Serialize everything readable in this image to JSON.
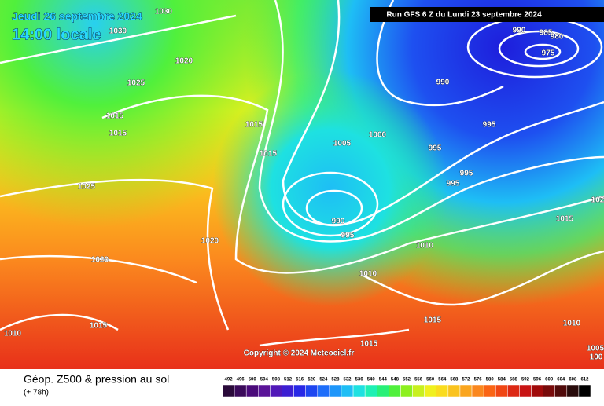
{
  "header": {
    "date": "Jeudi 26 septembre 2024",
    "time": "14:00 locale",
    "run": "Run GFS 6 Z du Lundi 23 septembre 2024"
  },
  "isobar_labels": [
    "1030",
    "1030",
    "1020",
    "1025",
    "1015",
    "1015",
    "1015",
    "1015",
    "1025",
    "1020",
    "1020",
    "1015",
    "1010",
    "1005",
    "1000",
    "995",
    "995",
    "995",
    "995",
    "990",
    "995",
    "1010",
    "1010",
    "1015",
    "1015",
    "990",
    "985",
    "980",
    "975",
    "990",
    "1015",
    "1010",
    "1005",
    "100",
    "102"
  ],
  "copyright": "Copyright © 2024 Meteociel.fr",
  "footer": {
    "title": "Géop. Z500 & pression au sol",
    "subtitle": "(+ 78h)"
  },
  "legend": {
    "values": [
      "492",
      "496",
      "500",
      "504",
      "508",
      "512",
      "516",
      "520",
      "524",
      "528",
      "532",
      "536",
      "540",
      "544",
      "548",
      "552",
      "556",
      "560",
      "564",
      "568",
      "572",
      "576",
      "580",
      "584",
      "588",
      "592",
      "596",
      "600",
      "604",
      "608",
      "612"
    ],
    "colors": [
      "#2a0a3a",
      "#3a0a5a",
      "#4a0a7a",
      "#5a1498",
      "#5018b8",
      "#3c1ed2",
      "#2828e6",
      "#1e46f0",
      "#1e6efa",
      "#1e96fa",
      "#1ebef5",
      "#1ee1e1",
      "#1ef0b4",
      "#28f078",
      "#50f03c",
      "#8cf01e",
      "#c8f01e",
      "#f0f01e",
      "#fadc1e",
      "#fac31e",
      "#faa51e",
      "#fa871e",
      "#fa6414",
      "#f04614",
      "#dc2814",
      "#c81414",
      "#a00a0a",
      "#780a0a",
      "#500a0a",
      "#280a0a",
      "#000000"
    ]
  }
}
